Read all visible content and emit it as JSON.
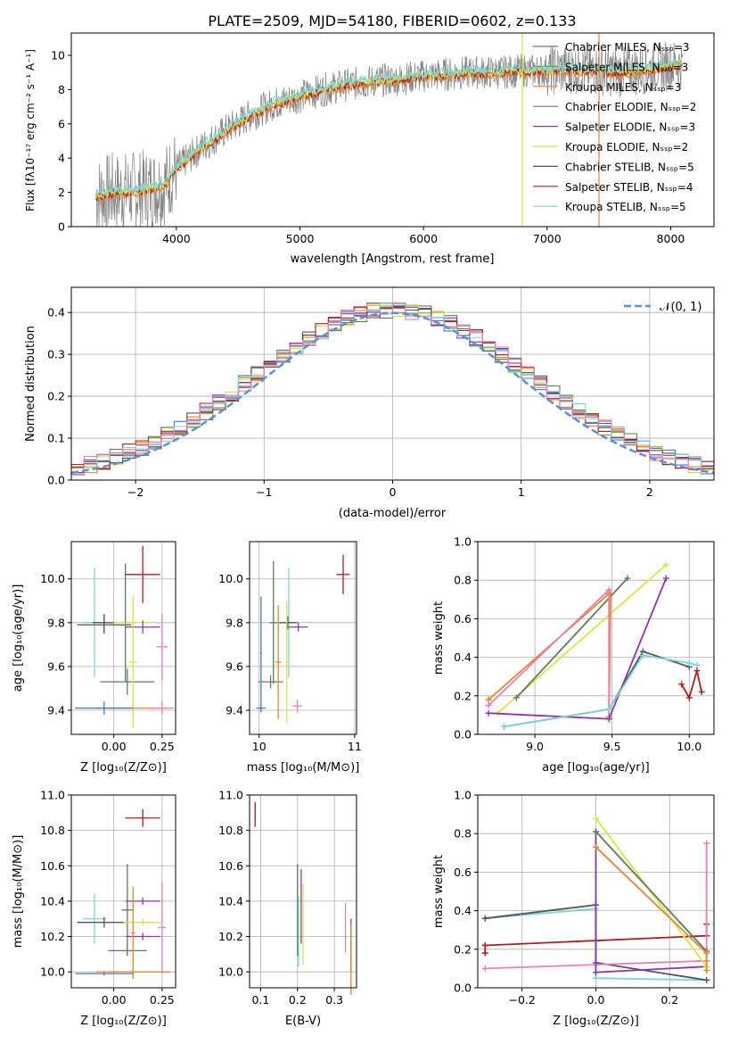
{
  "title": "PLATE=2509, MJD=54180, FIBERID=0602, z=0.133",
  "colors": {
    "chabrier_miles": "#4f79b8",
    "salpeter_miles": "#4dad57",
    "kroupa_miles": "#e7842e",
    "chabrier_elodie": "#5b7d5a",
    "salpeter_elodie": "#8f35b0",
    "kroupa_elodie": "#d5e64a",
    "chabrier_stelib": "#555555",
    "salpeter_stelib": "#b01d1d",
    "kroupa_stelib": "#79d7dc",
    "pink": "#e87fb8",
    "spectrum": "#808080",
    "gauss": "#5b8fd6"
  },
  "chart_data": [
    {
      "type": "line",
      "panel": "spectrum",
      "xlabel": "wavelength [Angstrom, rest frame]",
      "ylabel": "Flux [fλ10⁻¹⁷ erg cm⁻² s⁻¹ A⁻¹]",
      "xlim": [
        3150,
        8350
      ],
      "ylim": [
        0,
        11.3
      ],
      "xticks": [
        "4000",
        "5000",
        "6000",
        "7000",
        "8000"
      ],
      "yticks": [
        "0",
        "2",
        "4",
        "6",
        "8",
        "10"
      ],
      "legend_position": "right",
      "legend": [
        "Chabrier MILES, Nₛₛₚ=3",
        "Salpeter MILES, Nₛₛₚ=3",
        "Kroupa MILES, Nₛₛₚ=3",
        "Chabrier ELODIE, Nₛₛₚ=2",
        "Salpeter ELODIE, Nₛₛₚ=3",
        "Kroupa ELODIE, Nₛₛₚ=2",
        "Chabrier STELIB, Nₛₛₚ=5",
        "Salpeter STELIB, Nₛₛₚ=4",
        "Kroupa STELIB, Nₛₛₚ=5"
      ],
      "continuum": {
        "x": [
          3350,
          3500,
          3700,
          3900,
          4000,
          4200,
          4400,
          4600,
          4800,
          5000,
          5200,
          5400,
          5600,
          5800,
          6000,
          6200,
          6400,
          6600,
          6800,
          7000,
          7200,
          7400,
          7600,
          7800,
          8000,
          8100
        ],
        "y": [
          1.8,
          2.0,
          2.1,
          2.4,
          3.4,
          4.6,
          5.6,
          6.5,
          7.2,
          7.6,
          8.0,
          8.3,
          8.5,
          8.6,
          8.8,
          8.9,
          9.0,
          9.0,
          9.1,
          9.1,
          9.2,
          9.1,
          9.0,
          9.2,
          9.4,
          9.5
        ]
      }
    },
    {
      "type": "bar",
      "panel": "residual histogram",
      "xlabel": "(data-model)/error",
      "ylabel": "Normed distribution",
      "xlim": [
        -2.5,
        2.5
      ],
      "ylim": [
        0,
        0.46
      ],
      "xticks": [
        "−2",
        "−1",
        "0",
        "1",
        "2"
      ],
      "yticks": [
        "0.0",
        "0.1",
        "0.2",
        "0.3",
        "0.4"
      ],
      "legend": [
        "𝒩(0, 1)"
      ],
      "legend_position": "top-right",
      "grid": true,
      "bin_width": 0.1
    },
    {
      "type": "scatter",
      "panel": "age vs Z",
      "xlabel": "Z [log₁₀(Z/Z⊙)]",
      "ylabel": "age  [log₁₀(age/yr)]",
      "xlim": [
        -0.22,
        0.32
      ],
      "ylim": [
        9.29,
        10.17
      ],
      "xticks": [
        "0.00",
        "0.25"
      ],
      "yticks": [
        "9.4",
        "9.6",
        "9.8",
        "10.0"
      ],
      "grid": true,
      "points": [
        {
          "series": "kroupa_stelib",
          "x": -0.1,
          "y": 9.8,
          "xe": 0.06,
          "ye": 0.25
        },
        {
          "series": "chabrier_stelib",
          "x": -0.05,
          "y": 9.79,
          "xe": 0.14,
          "ye": 0.04
        },
        {
          "series": "chabrier_stelib",
          "x": -0.05,
          "y": 9.8,
          "xe": 0.06,
          "ye": 0.04
        },
        {
          "series": "chabrier_elodie",
          "x": 0.06,
          "y": 9.8,
          "xe": 0.03,
          "ye": 0.27
        },
        {
          "series": "chabrier_elodie",
          "x": 0.07,
          "y": 9.53,
          "xe": 0.14,
          "ye": 0.06
        },
        {
          "series": "salpeter_stelib",
          "x": 0.15,
          "y": 10.02,
          "xe": 0.09,
          "ye": 0.13
        },
        {
          "series": "kroupa_elodie",
          "x": 0.1,
          "y": 9.8,
          "xe": 0.1,
          "ye": 0.03
        },
        {
          "series": "salpeter_elodie",
          "x": 0.15,
          "y": 9.78,
          "xe": 0.09,
          "ye": 0.03
        },
        {
          "series": "kroupa_miles",
          "x": 0.1,
          "y": 9.41,
          "xe": 0.19,
          "ye": 0.03
        },
        {
          "series": "pink",
          "x": 0.25,
          "y": 9.41,
          "xe": 0.06,
          "ye": 0.03
        },
        {
          "series": "kroupa_elodie",
          "x": 0.1,
          "y": 9.62,
          "xe": 0.02,
          "ye": 0.3
        },
        {
          "series": "pink",
          "x": 0.25,
          "y": 9.69,
          "xe": 0.03,
          "ye": 0.15
        },
        {
          "series": "chabrier_miles",
          "x": -0.05,
          "y": 9.41,
          "xe": 0.15,
          "ye": 0.03
        }
      ]
    },
    {
      "type": "scatter",
      "panel": "age vs mass",
      "xlabel": "mass [log₁₀(M/M⊙)]",
      "ylabel": "",
      "xlim": [
        9.9,
        11.02
      ],
      "ylim": [
        9.29,
        10.17
      ],
      "xticks": [
        "10",
        "11"
      ],
      "yticks": [
        "9.4",
        "9.6",
        "9.8",
        "10.0"
      ],
      "grid": true,
      "points": [
        {
          "series": "kroupa_stelib",
          "x": 10.31,
          "y": 9.8,
          "xe": 0.06,
          "ye": 0.25
        },
        {
          "series": "chabrier_stelib",
          "x": 10.3,
          "y": 9.8,
          "xe": 0.1,
          "ye": 0.03
        },
        {
          "series": "chabrier_elodie",
          "x": 10.15,
          "y": 9.8,
          "xe": 0.04,
          "ye": 0.28
        },
        {
          "series": "chabrier_elodie",
          "x": 10.12,
          "y": 9.53,
          "xe": 0.13,
          "ye": 0.03
        },
        {
          "series": "salpeter_elodie",
          "x": 10.41,
          "y": 9.78,
          "xe": 0.1,
          "ye": 0.02
        },
        {
          "series": "kroupa_elodie",
          "x": 10.29,
          "y": 9.62,
          "xe": 0.02,
          "ye": 0.28
        },
        {
          "series": "kroupa_miles",
          "x": 10.2,
          "y": 9.62,
          "xe": 0.03,
          "ye": 0.26
        },
        {
          "series": "pink",
          "x": 10.4,
          "y": 9.42,
          "xe": 0.05,
          "ye": 0.03
        },
        {
          "series": "salpeter_stelib",
          "x": 10.88,
          "y": 10.02,
          "xe": 0.07,
          "ye": 0.09
        },
        {
          "series": "chabrier_miles",
          "x": 10.02,
          "y": 9.41,
          "xe": 0.05,
          "ye": 0.02
        },
        {
          "series": "chabrier_miles",
          "x": 10.02,
          "y": 9.66,
          "xe": 0.01,
          "ye": 0.26
        }
      ]
    },
    {
      "type": "line",
      "panel": "mass weight vs age",
      "xlabel": "age  [log₁₀(age/yr)]",
      "ylabel": "mass weight",
      "xlim": [
        8.63,
        10.16
      ],
      "ylim": [
        0,
        1.0
      ],
      "xticks": [
        "9.0",
        "9.5",
        "10.0"
      ],
      "yticks": [
        "0.0",
        "0.2",
        "0.4",
        "0.6",
        "0.8",
        "1.0"
      ],
      "grid": true,
      "series": [
        {
          "color_key": "kroupa_elodie",
          "x": [
            8.76,
            9.85
          ],
          "y": [
            0.11,
            0.88
          ]
        },
        {
          "color_key": "chabrier_elodie",
          "x": [
            8.88,
            9.6
          ],
          "y": [
            0.19,
            0.81
          ]
        },
        {
          "color_key": "kroupa_miles",
          "x": [
            8.7,
            9.48,
            9.49,
            9.48
          ],
          "y": [
            0.18,
            0.73,
            0.73,
            0.09
          ]
        },
        {
          "color_key": "pink",
          "x": [
            8.7,
            9.48,
            9.48
          ],
          "y": [
            0.15,
            0.75,
            0.08
          ]
        },
        {
          "color_key": "salpeter_elodie",
          "x": [
            8.7,
            9.48,
            9.85
          ],
          "y": [
            0.11,
            0.08,
            0.81
          ]
        },
        {
          "color_key": "chabrier_stelib",
          "x": [
            8.8,
            9.48,
            9.7,
            10.0
          ],
          "y": [
            0.04,
            0.13,
            0.43,
            0.35
          ]
        },
        {
          "color_key": "kroupa_stelib",
          "x": [
            8.8,
            9.48,
            9.7,
            10.0,
            10.05
          ],
          "y": [
            0.04,
            0.13,
            0.41,
            0.37,
            0.36
          ]
        },
        {
          "color_key": "salpeter_stelib",
          "x": [
            9.95,
            10.0,
            10.05,
            10.08
          ],
          "y": [
            0.26,
            0.19,
            0.33,
            0.22
          ]
        }
      ]
    },
    {
      "type": "scatter",
      "panel": "mass vs Z",
      "xlabel": "Z [log₁₀(Z/Z⊙)]",
      "ylabel": "mass [log₁₀(M/M⊙)]",
      "xlim": [
        -0.22,
        0.32
      ],
      "ylim": [
        9.91,
        11.0
      ],
      "xticks": [
        "0.00",
        "0.25"
      ],
      "yticks": [
        "10.0",
        "10.2",
        "10.4",
        "10.6",
        "10.8",
        "11.0"
      ],
      "grid": true,
      "points": [
        {
          "series": "salpeter_stelib",
          "x": 0.15,
          "y": 10.87,
          "xe": 0.09,
          "ye": 0.05
        },
        {
          "series": "kroupa_stelib",
          "x": -0.1,
          "y": 10.3,
          "xe": 0.06,
          "ye": 0.14
        },
        {
          "series": "chabrier_stelib",
          "x": -0.05,
          "y": 10.28,
          "xe": 0.14,
          "ye": 0.03
        },
        {
          "series": "chabrier_elodie",
          "x": 0.07,
          "y": 10.35,
          "xe": 0.03,
          "ye": 0.26
        },
        {
          "series": "chabrier_elodie",
          "x": 0.07,
          "y": 10.12,
          "xe": 0.1,
          "ye": 0.02
        },
        {
          "series": "salpeter_elodie",
          "x": 0.15,
          "y": 10.4,
          "xe": 0.09,
          "ye": 0.02
        },
        {
          "series": "kroupa_elodie",
          "x": 0.15,
          "y": 10.28,
          "xe": 0.1,
          "ye": 0.02
        },
        {
          "series": "salpeter_elodie",
          "x": 0.15,
          "y": 10.2,
          "xe": 0.09,
          "ye": 0.02
        },
        {
          "series": "kroupa_miles",
          "x": 0.1,
          "y": 10.0,
          "xe": 0.19,
          "ye": 0.02
        },
        {
          "series": "pink",
          "x": 0.25,
          "y": 10.25,
          "xe": 0.02,
          "ye": 0.26
        },
        {
          "series": "kroupa_miles",
          "x": 0.1,
          "y": 10.22,
          "xe": 0.01,
          "ye": 0.26
        },
        {
          "series": "chabrier_miles",
          "x": -0.05,
          "y": 9.99,
          "xe": 0.15,
          "ye": 0.01
        }
      ]
    },
    {
      "type": "scatter",
      "panel": "mass vs E(B-V)",
      "xlabel": "E(B-V)",
      "ylabel": "",
      "xlim": [
        0.07,
        0.36
      ],
      "ylim": [
        9.91,
        11.0
      ],
      "xticks": [
        "0.1",
        "0.2",
        "0.3"
      ],
      "yticks": [
        "10.0",
        "10.2",
        "10.4",
        "10.6",
        "10.8",
        "11.0"
      ],
      "grid": true,
      "points": [
        {
          "series": "salpeter_stelib",
          "x": 0.085,
          "y": 10.89,
          "xe": 0,
          "ye": 0.07
        },
        {
          "series": "chabrier_elodie",
          "x": 0.2,
          "y": 10.35,
          "xe": 0,
          "ye": 0.26
        },
        {
          "series": "kroupa_stelib",
          "x": 0.203,
          "y": 10.23,
          "xe": 0,
          "ye": 0.2
        },
        {
          "series": "salpeter_elodie",
          "x": 0.21,
          "y": 10.37,
          "xe": 0,
          "ye": 0.21
        },
        {
          "series": "kroupa_elodie",
          "x": 0.215,
          "y": 10.27,
          "xe": 0,
          "ye": 0.23
        },
        {
          "series": "pink",
          "x": 0.33,
          "y": 10.25,
          "xe": 0,
          "ye": 0.14
        },
        {
          "series": "chabrier_stelib",
          "x": 0.345,
          "y": 10.15,
          "xe": 0,
          "ye": 0.15
        },
        {
          "series": "kroupa_miles",
          "x": 0.345,
          "y": 10.07,
          "xe": 0,
          "ye": 0.2
        }
      ]
    },
    {
      "type": "line",
      "panel": "mass weight vs Z",
      "xlabel": "Z [log₁₀(Z/Z⊙)]",
      "ylabel": "mass weight",
      "xlim": [
        -0.32,
        0.32
      ],
      "ylim": [
        0,
        1.0
      ],
      "xticks": [
        "−0.2",
        "0.0",
        "0.2"
      ],
      "yticks": [
        "0.0",
        "0.2",
        "0.4",
        "0.6",
        "0.8",
        "1.0"
      ],
      "grid": true,
      "series": [
        {
          "color_key": "kroupa_stelib",
          "x": [
            -0.3,
            0.0,
            0.0,
            0.3
          ],
          "y": [
            0.36,
            0.41,
            0.05,
            0.04
          ]
        },
        {
          "color_key": "chabrier_stelib",
          "x": [
            -0.3,
            0.0,
            0.0,
            0.3
          ],
          "y": [
            0.36,
            0.43,
            0.13,
            0.04
          ]
        },
        {
          "color_key": "salpeter_stelib",
          "x": [
            -0.3,
            0.3
          ],
          "y": [
            0.22,
            0.27
          ]
        },
        {
          "color_key": "salpeter_stelib",
          "x": [
            -0.3,
            -0.3
          ],
          "y": [
            0.18,
            0.22
          ]
        },
        {
          "color_key": "salpeter_stelib",
          "x": [
            0.3,
            0.3
          ],
          "y": [
            0.27,
            0.33
          ]
        },
        {
          "color_key": "pink",
          "x": [
            -0.3,
            0.0,
            0.3
          ],
          "y": [
            0.1,
            0.12,
            0.14
          ]
        },
        {
          "color_key": "pink",
          "x": [
            0.3,
            0.3
          ],
          "y": [
            0.14,
            0.75
          ]
        },
        {
          "color_key": "salpeter_elodie",
          "x": [
            0.0,
            0.0,
            0.3
          ],
          "y": [
            0.81,
            0.08,
            0.11
          ]
        },
        {
          "color_key": "kroupa_elodie",
          "x": [
            0.0,
            0.3
          ],
          "y": [
            0.88,
            0.11
          ]
        },
        {
          "color_key": "chabrier_elodie",
          "x": [
            0.0,
            0.3
          ],
          "y": [
            0.81,
            0.19
          ]
        },
        {
          "color_key": "kroupa_miles",
          "x": [
            0.0,
            0.3,
            0.3
          ],
          "y": [
            0.73,
            0.18,
            0.09
          ]
        }
      ]
    }
  ]
}
